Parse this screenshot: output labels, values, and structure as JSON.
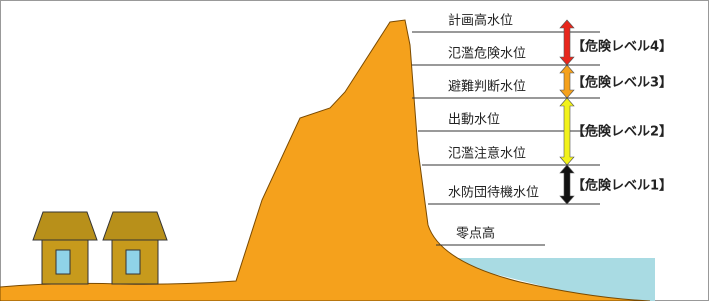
{
  "water_levels": [
    "計画高水位",
    "氾濫危険水位",
    "避難判断水位",
    "出動水位",
    "氾濫注意水位",
    "水防団待機水位",
    "零点高"
  ],
  "danger_levels": [
    "【危険レベル4】",
    "【危険レベル3】",
    "【危険レベル2】",
    "【危険レベル1】"
  ]
}
